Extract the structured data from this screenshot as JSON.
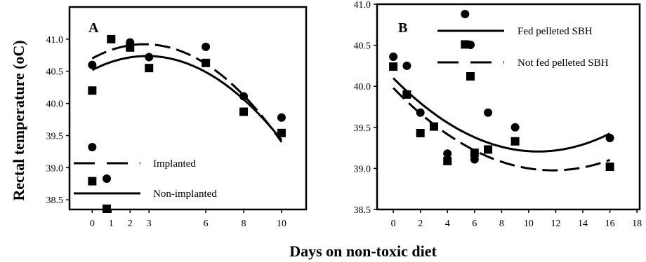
{
  "figure": {
    "ylabel": "Rectal temperature (oC)",
    "xlabel": "Days on non-toxic diet"
  },
  "chart_data": [
    {
      "type": "scatter",
      "panel_label": "A",
      "xlim": [
        -1.2,
        11.3
      ],
      "ylim": [
        38.35,
        41.5
      ],
      "xticks": [
        0,
        1,
        2,
        3,
        6,
        8,
        10
      ],
      "yticks": [
        38.5,
        39.0,
        39.5,
        40.0,
        40.5,
        41.0
      ],
      "ytick_labels": [
        "38.5",
        "39.0",
        "39.5",
        "40.0",
        "40.5",
        "41.0"
      ],
      "legend_position": "bottom-left",
      "series": [
        {
          "name": "Implanted",
          "marker": "circle",
          "line": "dashed",
          "x": [
            0,
            0,
            2,
            3,
            6,
            8,
            10
          ],
          "y": [
            40.6,
            39.32,
            40.95,
            40.72,
            40.88,
            40.11,
            39.78
          ],
          "fit": [
            40.7,
            0.16,
            -0.029
          ]
        },
        {
          "name": "Non-implanted",
          "marker": "square",
          "line": "solid",
          "x": [
            0,
            0,
            1,
            2,
            3,
            6,
            8,
            10
          ],
          "y": [
            40.2,
            38.79,
            41.0,
            40.87,
            40.55,
            40.63,
            39.87,
            39.54
          ],
          "fit": [
            40.52,
            0.15,
            -0.0259
          ]
        }
      ]
    },
    {
      "type": "scatter",
      "panel_label": "B",
      "xlim": [
        -1.2,
        18.2
      ],
      "ylim": [
        38.5,
        41.0
      ],
      "xticks": [
        0,
        2,
        4,
        6,
        8,
        10,
        12,
        14,
        16,
        18
      ],
      "yticks": [
        38.5,
        39.0,
        39.5,
        40.0,
        40.5,
        41.0
      ],
      "ytick_labels": [
        "38.5",
        "39.0",
        "39.5",
        "40.0",
        "40.5",
        "41.0"
      ],
      "legend_position": "top-right",
      "series": [
        {
          "name": "Fed pelleted SBH",
          "marker": "circle",
          "line": "solid",
          "x": [
            0,
            1,
            2,
            4,
            5.3,
            6,
            7,
            9,
            16
          ],
          "y": [
            40.36,
            40.25,
            39.68,
            39.18,
            40.88,
            39.11,
            39.68,
            39.5,
            39.37
          ],
          "fit": [
            40.1,
            -0.167,
            0.0078
          ]
        },
        {
          "name": "Not fed  pelleted SBH",
          "marker": "square",
          "line": "dashed",
          "x": [
            0,
            1,
            2,
            3,
            4,
            5.3,
            6,
            7,
            9,
            16
          ],
          "y": [
            40.24,
            39.9,
            39.43,
            39.51,
            39.09,
            40.51,
            39.19,
            39.23,
            39.33,
            39.02
          ],
          "fit": [
            39.98,
            -0.17,
            0.0072
          ]
        }
      ]
    }
  ]
}
